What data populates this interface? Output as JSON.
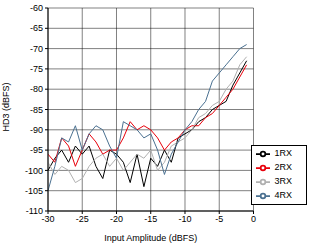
{
  "chart_data": {
    "type": "line",
    "x_label": "Input Amplitude (dBFS)",
    "y_label": "HD3 (dBFS)",
    "x": [
      -30,
      -29,
      -28,
      -27,
      -26,
      -25,
      -24,
      -23,
      -22,
      -21,
      -20,
      -19,
      -18,
      -17,
      -16,
      -15,
      -14,
      -13,
      -12,
      -11,
      -10,
      -9,
      -8,
      -7,
      -6,
      -5,
      -4,
      -3,
      -2,
      -1
    ],
    "series": [
      {
        "name": "1RX",
        "color": "#000000",
        "values": [
          -100,
          -97,
          -95,
          -98,
          -94,
          -96,
          -94,
          -99,
          -102,
          -95,
          -96,
          -98,
          -103,
          -96,
          -104,
          -97,
          -99,
          -95,
          -98,
          -92,
          -91,
          -90,
          -88,
          -87,
          -85,
          -84,
          -83,
          -79,
          -76,
          -73
        ]
      },
      {
        "name": "2RX",
        "color": "#e8000b",
        "values": [
          -96,
          -98,
          -92,
          -94,
          -99,
          -95,
          -91,
          -93,
          -96,
          -95,
          -95,
          -92,
          -88,
          -90,
          -89,
          -90,
          -92,
          -95,
          -93,
          -92,
          -90,
          -89,
          -89,
          -87,
          -86,
          -84,
          -82,
          -80,
          -77,
          -74
        ]
      },
      {
        "name": "3RX",
        "color": "#b0b0b0",
        "values": [
          -98,
          -101,
          -99,
          -100,
          -103,
          -102,
          -99,
          -97,
          -96,
          -99,
          -97,
          -100,
          -98,
          -96,
          -97,
          -95,
          -100,
          -98,
          -94,
          -93,
          -92,
          -90,
          -87,
          -86,
          -84,
          -83,
          -80,
          -78,
          -74,
          -72
        ]
      },
      {
        "name": "4RX",
        "color": "#4a7090",
        "values": [
          -105,
          -99,
          -92,
          -93,
          -89,
          -95,
          -91,
          -89,
          -90,
          -94,
          -97,
          -88,
          -89,
          -90,
          -92,
          -91,
          -95,
          -101,
          -96,
          -93,
          -90,
          -88,
          -85,
          -83,
          -78,
          -76,
          -74,
          -72,
          -70,
          -69
        ]
      }
    ],
    "xlim": [
      -30,
      0
    ],
    "xticks": [
      -30,
      -25,
      -20,
      -15,
      -10,
      -5,
      0
    ],
    "ylim": [
      -110,
      -60
    ],
    "yticks": [
      -110,
      -105,
      -100,
      -95,
      -90,
      -85,
      -80,
      -75,
      -70,
      -65,
      -60
    ],
    "grid": true,
    "legend": "lower right"
  }
}
